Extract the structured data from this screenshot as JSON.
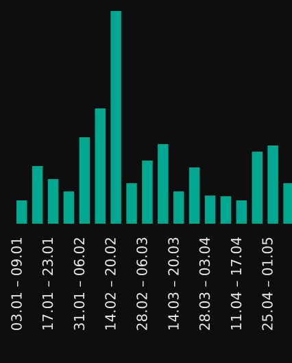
{
  "chart_data": {
    "type": "bar",
    "categories": [
      "03.01 – 09.01",
      null,
      "17.01 – 23.01",
      null,
      "31.01 – 06.02",
      null,
      "14.02 – 20.02",
      null,
      "28.02 – 06.03",
      null,
      "14.03 – 20.03",
      null,
      "28.03 – 03.04",
      null,
      "11.04 – 17.04",
      null,
      "25.04 – 01.05",
      null
    ],
    "values": [
      34,
      84,
      65,
      47,
      126,
      168,
      310,
      59,
      92,
      116,
      47,
      82,
      41,
      40,
      34,
      105,
      114,
      59
    ],
    "color": "#00a88f",
    "ylim": [
      0,
      310
    ]
  }
}
